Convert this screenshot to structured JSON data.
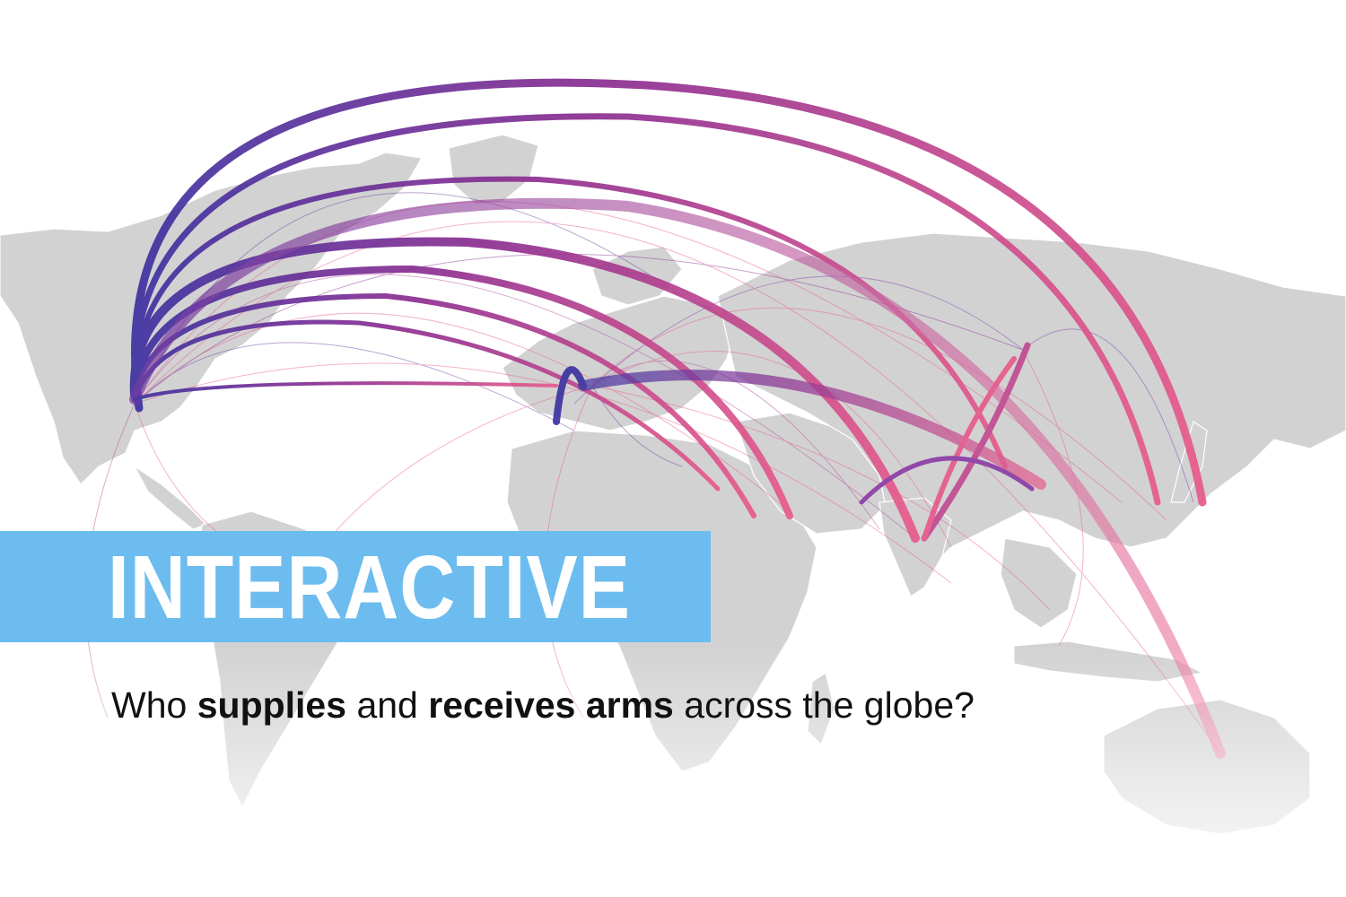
{
  "banner": {
    "label": "INTERACTIVE"
  },
  "headline": {
    "part1": "Who",
    "bold1": "supplies",
    "part2": "and",
    "bold2": "receives arms",
    "part3": "across the globe?"
  },
  "colors": {
    "banner": "#6cbcef",
    "land": "#d2d2d2",
    "flow_start": "#3b2fa0",
    "flow_end": "#e8588a"
  }
}
